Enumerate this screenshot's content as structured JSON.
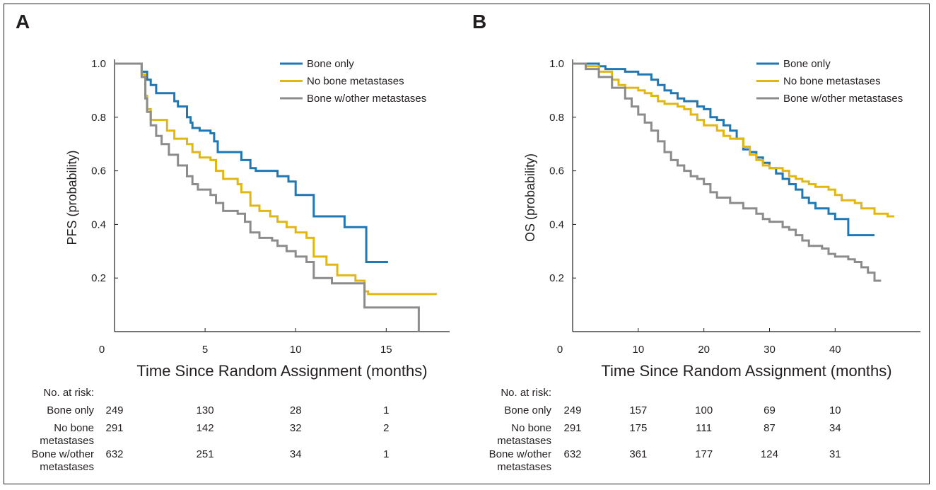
{
  "chart_data": [
    {
      "type": "line",
      "panel": "A",
      "xlabel": "Time Since Random Assignment (months)",
      "ylabel": "PFS (probability)",
      "xlim": [
        0,
        18.5
      ],
      "ylim": [
        0,
        1.0
      ],
      "xticks": [
        0,
        5,
        10,
        15
      ],
      "yticks": [
        0.2,
        0.4,
        0.6,
        0.8,
        1.0
      ],
      "ytick_labels": [
        "0.2",
        "0.4",
        "0.6",
        "0.8",
        "1.0"
      ],
      "legend_position": "top-right",
      "series": [
        {
          "name": "Bone only",
          "color": "#1f77b4",
          "points": [
            [
              0,
              1.0
            ],
            [
              1,
              1.0
            ],
            [
              1.5,
              0.97
            ],
            [
              1.8,
              0.94
            ],
            [
              2,
              0.92
            ],
            [
              2.3,
              0.89
            ],
            [
              3,
              0.89
            ],
            [
              3.3,
              0.86
            ],
            [
              3.5,
              0.84
            ],
            [
              4,
              0.8
            ],
            [
              4.2,
              0.78
            ],
            [
              4.3,
              0.76
            ],
            [
              4.7,
              0.75
            ],
            [
              5.3,
              0.74
            ],
            [
              5.5,
              0.71
            ],
            [
              5.7,
              0.67
            ],
            [
              7,
              0.64
            ],
            [
              7.5,
              0.61
            ],
            [
              7.8,
              0.6
            ],
            [
              9,
              0.58
            ],
            [
              9.6,
              0.56
            ],
            [
              10,
              0.51
            ],
            [
              11,
              0.43
            ],
            [
              12.7,
              0.39
            ],
            [
              13.9,
              0.26
            ],
            [
              15.1,
              0.26
            ]
          ]
        },
        {
          "name": "No bone metastases",
          "color": "#e2b714",
          "points": [
            [
              0,
              1.0
            ],
            [
              1,
              1.0
            ],
            [
              1.5,
              0.96
            ],
            [
              1.7,
              0.88
            ],
            [
              1.8,
              0.83
            ],
            [
              2,
              0.79
            ],
            [
              2.6,
              0.79
            ],
            [
              2.9,
              0.75
            ],
            [
              3.3,
              0.72
            ],
            [
              4,
              0.7
            ],
            [
              4.3,
              0.67
            ],
            [
              4.7,
              0.65
            ],
            [
              5.3,
              0.64
            ],
            [
              5.6,
              0.6
            ],
            [
              6,
              0.57
            ],
            [
              6.8,
              0.55
            ],
            [
              7,
              0.52
            ],
            [
              7.5,
              0.47
            ],
            [
              8,
              0.45
            ],
            [
              8.6,
              0.43
            ],
            [
              9,
              0.41
            ],
            [
              9.5,
              0.39
            ],
            [
              10,
              0.37
            ],
            [
              10.6,
              0.35
            ],
            [
              11,
              0.28
            ],
            [
              11.7,
              0.25
            ],
            [
              12.3,
              0.21
            ],
            [
              13.3,
              0.19
            ],
            [
              13.8,
              0.15
            ],
            [
              14,
              0.14
            ],
            [
              17.8,
              0.14
            ]
          ]
        },
        {
          "name": "Bone w/other metastases",
          "color": "#8c8c8c",
          "points": [
            [
              0,
              1.0
            ],
            [
              1,
              1.0
            ],
            [
              1.5,
              0.95
            ],
            [
              1.7,
              0.87
            ],
            [
              1.8,
              0.82
            ],
            [
              2,
              0.77
            ],
            [
              2.3,
              0.73
            ],
            [
              2.6,
              0.7
            ],
            [
              3,
              0.66
            ],
            [
              3.5,
              0.62
            ],
            [
              4,
              0.58
            ],
            [
              4.3,
              0.55
            ],
            [
              4.6,
              0.53
            ],
            [
              5.3,
              0.51
            ],
            [
              5.6,
              0.48
            ],
            [
              6,
              0.45
            ],
            [
              6.8,
              0.44
            ],
            [
              7.2,
              0.41
            ],
            [
              7.5,
              0.37
            ],
            [
              8,
              0.35
            ],
            [
              8.7,
              0.34
            ],
            [
              9,
              0.32
            ],
            [
              9.5,
              0.3
            ],
            [
              10,
              0.28
            ],
            [
              10.6,
              0.26
            ],
            [
              11,
              0.2
            ],
            [
              12,
              0.18
            ],
            [
              13,
              0.18
            ],
            [
              13.8,
              0.09
            ],
            [
              16.8,
              0.09
            ],
            [
              16.8,
              0.0
            ]
          ]
        }
      ],
      "risk_table": {
        "header": "No. at risk:",
        "x": [
          0,
          5,
          10,
          15
        ],
        "rows": [
          {
            "label_lines": [
              "Bone only"
            ],
            "values": [
              "249",
              "130",
              "28",
              "1"
            ]
          },
          {
            "label_lines": [
              "No bone",
              "metastases"
            ],
            "values": [
              "291",
              "142",
              "32",
              "2"
            ]
          },
          {
            "label_lines": [
              "Bone w/other",
              "metastases"
            ],
            "values": [
              "632",
              "251",
              "34",
              "1"
            ]
          }
        ]
      }
    },
    {
      "type": "line",
      "panel": "B",
      "xlabel": "Time Since Random Assignment (months)",
      "ylabel": "OS (probability)",
      "xlim": [
        0,
        53
      ],
      "ylim": [
        0,
        1.0
      ],
      "xticks": [
        0,
        10,
        20,
        30,
        40
      ],
      "yticks": [
        0.2,
        0.4,
        0.6,
        0.8,
        1.0
      ],
      "ytick_labels": [
        "0.2",
        "0.4",
        "0.6",
        "0.8",
        "1.0"
      ],
      "legend_position": "top-right",
      "series": [
        {
          "name": "Bone only",
          "color": "#1f77b4",
          "points": [
            [
              0,
              1.0
            ],
            [
              2,
              1.0
            ],
            [
              4,
              0.99
            ],
            [
              5,
              0.98
            ],
            [
              7,
              0.98
            ],
            [
              8,
              0.97
            ],
            [
              10,
              0.96
            ],
            [
              11,
              0.96
            ],
            [
              12,
              0.94
            ],
            [
              13,
              0.92
            ],
            [
              14,
              0.9
            ],
            [
              15,
              0.89
            ],
            [
              16,
              0.87
            ],
            [
              17,
              0.86
            ],
            [
              18,
              0.86
            ],
            [
              19,
              0.84
            ],
            [
              20,
              0.83
            ],
            [
              21,
              0.8
            ],
            [
              22,
              0.79
            ],
            [
              23,
              0.77
            ],
            [
              24,
              0.75
            ],
            [
              25,
              0.72
            ],
            [
              26,
              0.68
            ],
            [
              27,
              0.67
            ],
            [
              28,
              0.65
            ],
            [
              29,
              0.63
            ],
            [
              30,
              0.61
            ],
            [
              31,
              0.59
            ],
            [
              32,
              0.57
            ],
            [
              33,
              0.55
            ],
            [
              34,
              0.53
            ],
            [
              35,
              0.5
            ],
            [
              36,
              0.48
            ],
            [
              37,
              0.46
            ],
            [
              38,
              0.46
            ],
            [
              39,
              0.44
            ],
            [
              40,
              0.42
            ],
            [
              42,
              0.36
            ],
            [
              46,
              0.36
            ]
          ]
        },
        {
          "name": "No bone metastases",
          "color": "#e2b714",
          "points": [
            [
              0,
              1.0
            ],
            [
              2,
              0.99
            ],
            [
              4,
              0.97
            ],
            [
              6,
              0.94
            ],
            [
              7,
              0.92
            ],
            [
              8,
              0.91
            ],
            [
              10,
              0.9
            ],
            [
              11,
              0.89
            ],
            [
              12,
              0.88
            ],
            [
              13,
              0.86
            ],
            [
              14,
              0.85
            ],
            [
              16,
              0.84
            ],
            [
              17,
              0.83
            ],
            [
              18,
              0.81
            ],
            [
              19,
              0.79
            ],
            [
              20,
              0.77
            ],
            [
              22,
              0.75
            ],
            [
              23,
              0.73
            ],
            [
              24,
              0.72
            ],
            [
              26,
              0.69
            ],
            [
              27,
              0.66
            ],
            [
              28,
              0.64
            ],
            [
              29,
              0.62
            ],
            [
              30,
              0.61
            ],
            [
              32,
              0.6
            ],
            [
              33,
              0.58
            ],
            [
              34,
              0.57
            ],
            [
              35,
              0.56
            ],
            [
              36,
              0.55
            ],
            [
              37,
              0.54
            ],
            [
              39,
              0.53
            ],
            [
              40,
              0.51
            ],
            [
              41,
              0.49
            ],
            [
              43,
              0.48
            ],
            [
              44,
              0.46
            ],
            [
              46,
              0.44
            ],
            [
              48,
              0.43
            ],
            [
              49,
              0.43
            ]
          ]
        },
        {
          "name": "Bone w/other metastases",
          "color": "#8c8c8c",
          "points": [
            [
              0,
              1.0
            ],
            [
              2,
              0.98
            ],
            [
              4,
              0.95
            ],
            [
              6,
              0.91
            ],
            [
              8,
              0.87
            ],
            [
              9,
              0.84
            ],
            [
              10,
              0.81
            ],
            [
              11,
              0.78
            ],
            [
              12,
              0.75
            ],
            [
              13,
              0.71
            ],
            [
              14,
              0.67
            ],
            [
              15,
              0.64
            ],
            [
              16,
              0.62
            ],
            [
              17,
              0.6
            ],
            [
              18,
              0.58
            ],
            [
              19,
              0.57
            ],
            [
              20,
              0.55
            ],
            [
              21,
              0.52
            ],
            [
              22,
              0.5
            ],
            [
              24,
              0.48
            ],
            [
              26,
              0.46
            ],
            [
              28,
              0.44
            ],
            [
              29,
              0.42
            ],
            [
              30,
              0.41
            ],
            [
              32,
              0.39
            ],
            [
              33,
              0.38
            ],
            [
              34,
              0.36
            ],
            [
              35,
              0.34
            ],
            [
              36,
              0.32
            ],
            [
              38,
              0.31
            ],
            [
              39,
              0.29
            ],
            [
              40,
              0.28
            ],
            [
              41,
              0.28
            ],
            [
              42,
              0.27
            ],
            [
              43,
              0.26
            ],
            [
              44,
              0.24
            ],
            [
              45,
              0.22
            ],
            [
              46,
              0.19
            ],
            [
              47,
              0.19
            ]
          ]
        }
      ],
      "risk_table": {
        "header": "No. at risk:",
        "x": [
          0,
          10,
          20,
          30,
          40
        ],
        "rows": [
          {
            "label_lines": [
              "Bone only"
            ],
            "values": [
              "249",
              "157",
              "100",
              "69",
              "10"
            ]
          },
          {
            "label_lines": [
              "No bone",
              "metastases"
            ],
            "values": [
              "291",
              "175",
              "111",
              "87",
              "34"
            ]
          },
          {
            "label_lines": [
              "Bone w/other",
              "metastases"
            ],
            "values": [
              "632",
              "361",
              "177",
              "124",
              "31"
            ]
          }
        ]
      }
    }
  ]
}
